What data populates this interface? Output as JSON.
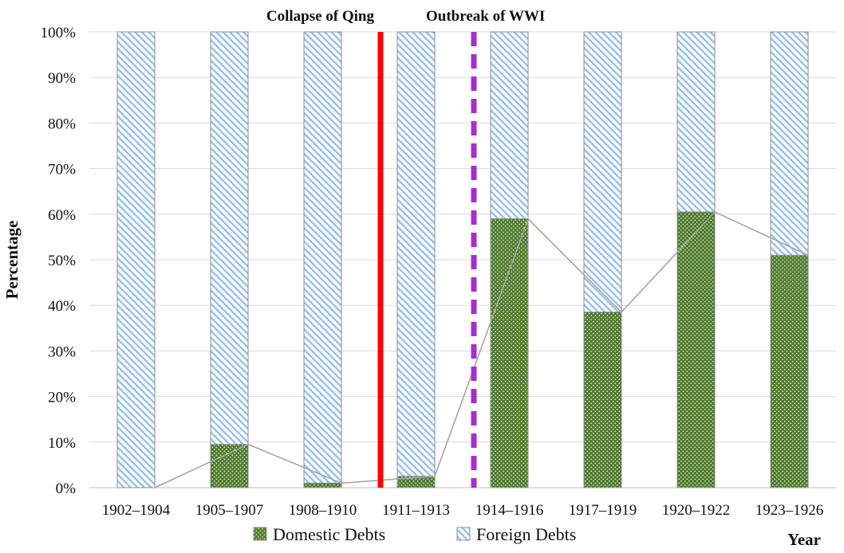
{
  "chart_data": {
    "type": "bar",
    "stacked": true,
    "percent": true,
    "categories": [
      "1902–1904",
      "1905–1907",
      "1908–1910",
      "1911–1913",
      "1914–1916",
      "1917–1919",
      "1920–1922",
      "1923–1926"
    ],
    "series": [
      {
        "name": "Domestic Debts",
        "values": [
          0,
          9.5,
          1,
          2.5,
          59,
          38.5,
          60.5,
          51
        ],
        "color": "#4e7a2a",
        "pattern": "dots"
      },
      {
        "name": "Foreign Debts",
        "values": [
          100,
          90.5,
          99,
          97.5,
          41,
          61.5,
          39.5,
          49
        ],
        "color": "#9cc3e6",
        "pattern": "diagonal-stripes"
      }
    ],
    "line": {
      "values": [
        0,
        9.5,
        1,
        2.5,
        59,
        38.5,
        60.5,
        51
      ],
      "color": "#a6a6a6"
    },
    "annotations": [
      {
        "label": "Collapse of Qing",
        "position_between": [
          "1908–1910",
          "1911–1913"
        ],
        "style": "solid",
        "color": "#ff0000"
      },
      {
        "label": "Outbreak of WWI",
        "position_between": [
          "1911–1913",
          "1914–1916"
        ],
        "style": "dashed",
        "color": "#a32fd1"
      }
    ],
    "title": "",
    "xlabel": "Year",
    "ylabel": "Percentage",
    "ylim": [
      0,
      100
    ],
    "ytick_step": 10,
    "ytick_labels": [
      "0%",
      "10%",
      "20%",
      "30%",
      "40%",
      "50%",
      "60%",
      "70%",
      "80%",
      "90%",
      "100%"
    ],
    "grid": true,
    "legend": "bottom"
  }
}
